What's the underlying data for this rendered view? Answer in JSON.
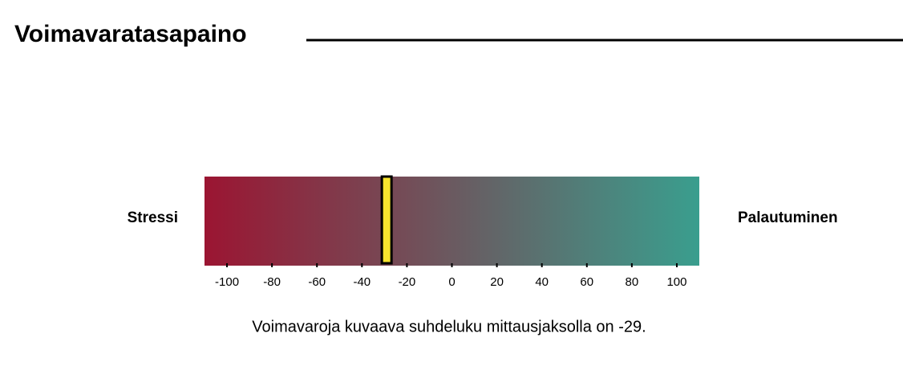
{
  "chart_data": {
    "type": "gauge",
    "title": "Voimavaratasapaino",
    "left_label": "Stressi",
    "right_label": "Palautuminen",
    "caption": "Voimavaroja kuvaava suhdeluku mittausjaksolla on -29.",
    "value": -29,
    "marker_color": "#f7e52e",
    "gradient": [
      "#9b1532",
      "#3a9e8e"
    ],
    "xlim": [
      -110,
      110
    ],
    "xticks": [
      -100,
      -80,
      -60,
      -40,
      -20,
      0,
      20,
      40,
      60,
      80,
      100
    ]
  }
}
